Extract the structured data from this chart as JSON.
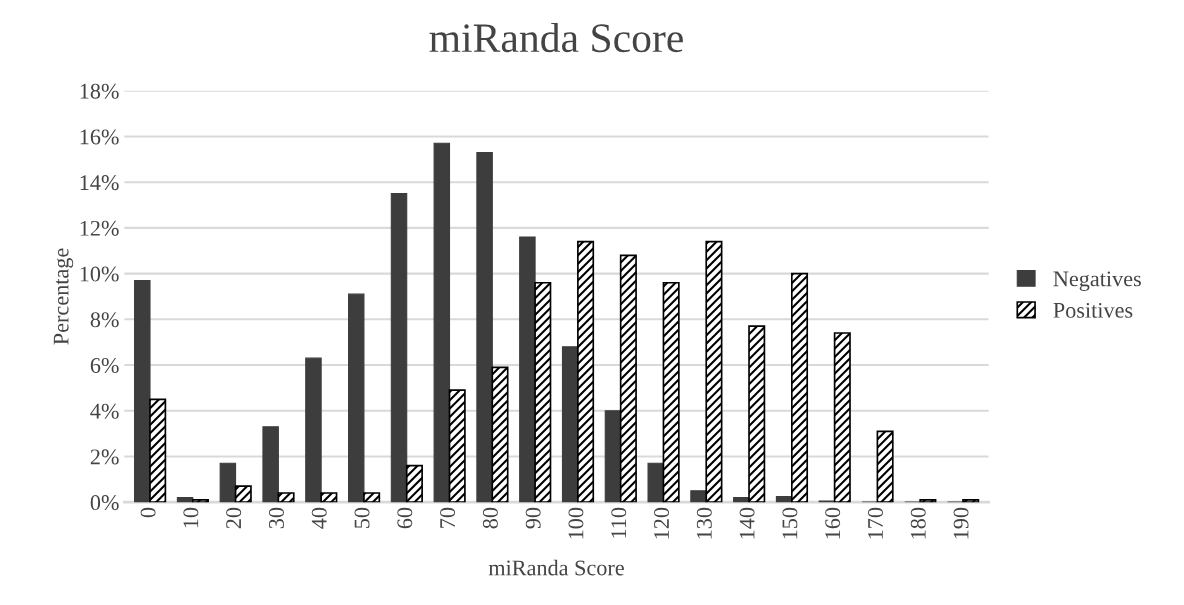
{
  "chart_data": {
    "type": "bar",
    "title": "miRanda Score",
    "xlabel": "miRanda Score",
    "ylabel": "Percentage",
    "categories": [
      "0",
      "10",
      "20",
      "30",
      "40",
      "50",
      "60",
      "70",
      "80",
      "90",
      "100",
      "110",
      "120",
      "130",
      "140",
      "150",
      "160",
      "170",
      "180",
      "190"
    ],
    "series": [
      {
        "name": "Negatives",
        "color": "#3d3d3d",
        "values": [
          9.7,
          0.2,
          1.7,
          3.3,
          6.3,
          9.1,
          13.5,
          15.7,
          15.3,
          11.6,
          6.8,
          4.0,
          1.7,
          0.5,
          0.2,
          0.25,
          0.05,
          0,
          0,
          0
        ]
      },
      {
        "name": "Positives",
        "color": "#000000",
        "values": [
          4.5,
          0.1,
          0.7,
          0.4,
          0.4,
          0.4,
          1.6,
          4.9,
          5.9,
          9.6,
          11.4,
          10.8,
          9.6,
          11.4,
          7.7,
          10.0,
          7.4,
          3.1,
          0.1,
          0.1
        ]
      }
    ],
    "ylim": [
      0,
      18
    ],
    "yticks": [
      {
        "value": 0,
        "label": "0%"
      },
      {
        "value": 2,
        "label": "2%"
      },
      {
        "value": 4,
        "label": "4%"
      },
      {
        "value": 6,
        "label": "6%"
      },
      {
        "value": 8,
        "label": "8%"
      },
      {
        "value": 10,
        "label": "10%"
      },
      {
        "value": 12,
        "label": "12%"
      },
      {
        "value": 14,
        "label": "14%"
      },
      {
        "value": 16,
        "label": "16%"
      },
      {
        "value": 18,
        "label": "18%"
      }
    ],
    "grid": "y",
    "legend": "right"
  }
}
